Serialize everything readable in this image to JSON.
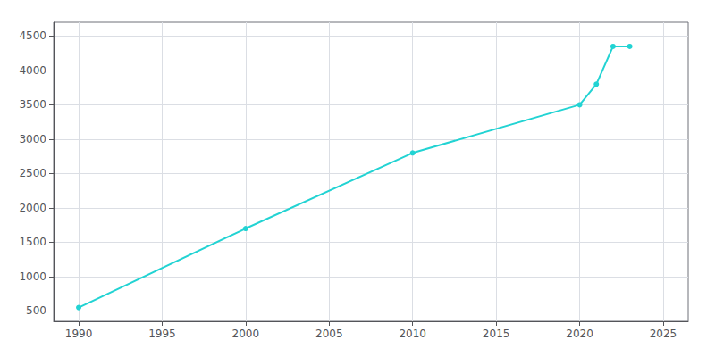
{
  "chart_data": {
    "type": "line",
    "x": [
      1990,
      2000,
      2010,
      2020,
      2021,
      2022,
      2023
    ],
    "values": [
      550,
      1700,
      2800,
      3500,
      3800,
      4350,
      4350
    ],
    "color": "#22d3d3",
    "marker": "circle",
    "xlim": [
      1988.5,
      2026.5
    ],
    "ylim": [
      350,
      4700
    ],
    "xticks": [
      1990,
      1995,
      2000,
      2005,
      2010,
      2015,
      2020,
      2025
    ],
    "yticks": [
      500,
      1000,
      1500,
      2000,
      2500,
      3000,
      3500,
      4000,
      4500
    ],
    "grid": true
  }
}
